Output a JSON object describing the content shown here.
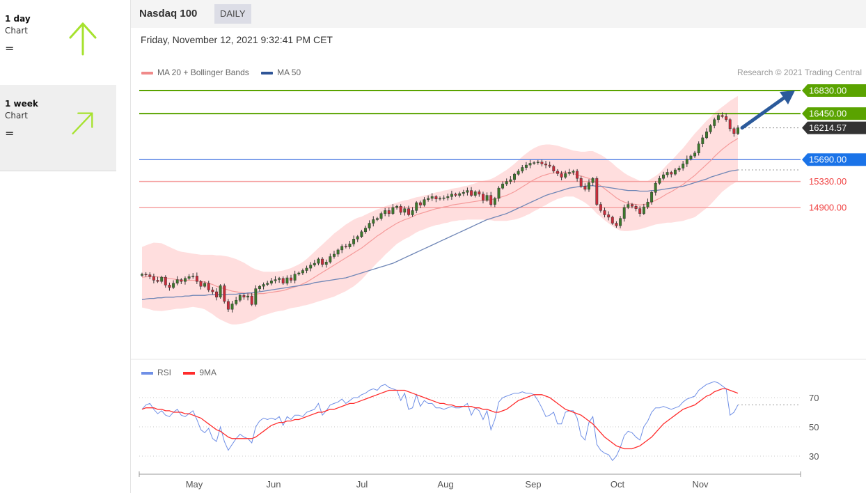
{
  "sidebar": {
    "items": [
      {
        "title": "1 day",
        "subtitle": "Chart",
        "indicator": "=",
        "arrow_icon": "arrow-up-icon",
        "color": "#9acd32"
      },
      {
        "title": "1 week",
        "subtitle": "Chart",
        "indicator": "=",
        "arrow_icon": "arrow-up-right-icon",
        "color": "#9acd32"
      }
    ]
  },
  "header": {
    "title": "Nasdaq 100",
    "badge": "DAILY"
  },
  "datetime": "Friday, November 12, 2021 9:32:41 PM CET",
  "legend": {
    "items": [
      {
        "label": "MA 20 + Bollinger Bands",
        "color": "#f08080"
      },
      {
        "label": "MA 50",
        "color": "#2f5597"
      }
    ],
    "credit": "Research © 2021 Trading Central"
  },
  "chart_data": [
    {
      "type": "line",
      "title": "Nasdaq 100",
      "ylim": [
        13200,
        17000
      ],
      "x_labels": [
        "May",
        "Jun",
        "Jul",
        "Aug",
        "Sep",
        "Oct",
        "Nov"
      ],
      "levels": [
        {
          "value": 16830,
          "label": "16830.00",
          "color": "#5aa300"
        },
        {
          "value": 16450,
          "label": "16450.00",
          "color": "#5aa300"
        },
        {
          "value": 16214.57,
          "label": "16214.57",
          "color": "#333333"
        },
        {
          "value": 15690,
          "label": "15690.00",
          "color": "#1a73e8"
        },
        {
          "value": 15330,
          "label": "15330.00",
          "color": "#f06060"
        },
        {
          "value": 14900,
          "label": "14900.00",
          "color": "#f06060"
        }
      ],
      "close": [
        13800,
        13790,
        13760,
        13700,
        13680,
        13750,
        13620,
        13580,
        13650,
        13710,
        13680,
        13730,
        13760,
        13770,
        13680,
        13600,
        13650,
        13540,
        13510,
        13420,
        13610,
        13350,
        13220,
        13310,
        13370,
        13450,
        13420,
        13440,
        13300,
        13560,
        13600,
        13630,
        13650,
        13690,
        13710,
        13730,
        13650,
        13740,
        13700,
        13800,
        13820,
        13860,
        13900,
        13950,
        13980,
        14050,
        13960,
        14000,
        14090,
        14130,
        14200,
        14260,
        14250,
        14300,
        14380,
        14420,
        14500,
        14560,
        14640,
        14700,
        14720,
        14800,
        14850,
        14800,
        14900,
        14920,
        14820,
        14880,
        14780,
        14850,
        14980,
        14940,
        15030,
        15050,
        15080,
        15040,
        15050,
        15060,
        15080,
        15120,
        15100,
        15130,
        15150,
        15180,
        15100,
        15160,
        15120,
        15020,
        15100,
        14950,
        15050,
        15220,
        15290,
        15330,
        15360,
        15450,
        15500,
        15560,
        15600,
        15630,
        15640,
        15650,
        15620,
        15600,
        15580,
        15500,
        15460,
        15400,
        15460,
        15480,
        15500,
        15380,
        15250,
        15200,
        15310,
        15380,
        14950,
        14850,
        14780,
        14740,
        14640,
        14600,
        14720,
        14900,
        14950,
        14920,
        14880,
        14800,
        14910,
        14990,
        15150,
        15300,
        15380,
        15440,
        15480,
        15450,
        15520,
        15550,
        15620,
        15700,
        15750,
        15800,
        15950,
        16050,
        16150,
        16250,
        16350,
        16420,
        16400,
        16350,
        16200,
        16120,
        16214.57
      ],
      "ma20": [
        13750,
        13755,
        13760,
        13760,
        13755,
        13750,
        13740,
        13730,
        13720,
        13710,
        13700,
        13700,
        13700,
        13700,
        13690,
        13680,
        13670,
        13650,
        13630,
        13600,
        13580,
        13560,
        13540,
        13520,
        13510,
        13500,
        13490,
        13480,
        13470,
        13470,
        13480,
        13480,
        13490,
        13500,
        13510,
        13520,
        13530,
        13550,
        13570,
        13590,
        13610,
        13640,
        13670,
        13710,
        13750,
        13790,
        13830,
        13870,
        13910,
        13950,
        13990,
        14030,
        14070,
        14110,
        14150,
        14190,
        14230,
        14280,
        14330,
        14380,
        14430,
        14470,
        14520,
        14560,
        14600,
        14640,
        14670,
        14700,
        14720,
        14750,
        14780,
        14800,
        14820,
        14840,
        14860,
        14880,
        14890,
        14910,
        14920,
        14940,
        14950,
        14960,
        14970,
        14980,
        14990,
        15000,
        15010,
        15020,
        15020,
        15030,
        15040,
        15060,
        15080,
        15100,
        15130,
        15160,
        15200,
        15240,
        15280,
        15320,
        15360,
        15390,
        15420,
        15440,
        15460,
        15470,
        15480,
        15480,
        15480,
        15470,
        15460,
        15440,
        15420,
        15400,
        15380,
        15350,
        15300,
        15260,
        15210,
        15160,
        15110,
        15060,
        15020,
        14990,
        14970,
        14960,
        14950,
        14940,
        14950,
        14960,
        14990,
        15020,
        15050,
        15090,
        15130,
        15160,
        15200,
        15240,
        15280,
        15330,
        15380,
        15430,
        15490,
        15550,
        15610,
        15670,
        15740,
        15800,
        15860,
        15910,
        15960,
        16000,
        16040
      ],
      "ma50": [
        13380,
        13390,
        13400,
        13400,
        13410,
        13410,
        13420,
        13420,
        13420,
        13430,
        13430,
        13440,
        13440,
        13450,
        13450,
        13450,
        13450,
        13460,
        13460,
        13460,
        13460,
        13460,
        13470,
        13470,
        13470,
        13480,
        13480,
        13490,
        13490,
        13500,
        13510,
        13520,
        13530,
        13540,
        13550,
        13560,
        13570,
        13580,
        13590,
        13600,
        13610,
        13620,
        13630,
        13640,
        13660,
        13670,
        13680,
        13690,
        13700,
        13710,
        13720,
        13730,
        13740,
        13760,
        13780,
        13800,
        13820,
        13840,
        13860,
        13880,
        13900,
        13920,
        13940,
        13960,
        13980,
        14010,
        14040,
        14070,
        14100,
        14130,
        14160,
        14190,
        14220,
        14250,
        14280,
        14310,
        14340,
        14370,
        14400,
        14430,
        14460,
        14490,
        14520,
        14550,
        14580,
        14610,
        14640,
        14670,
        14700,
        14720,
        14740,
        14760,
        14780,
        14800,
        14830,
        14860,
        14890,
        14920,
        14950,
        14980,
        15010,
        15040,
        15070,
        15100,
        15120,
        15140,
        15160,
        15180,
        15200,
        15220,
        15230,
        15240,
        15250,
        15250,
        15260,
        15260,
        15250,
        15250,
        15240,
        15230,
        15220,
        15210,
        15200,
        15190,
        15180,
        15180,
        15180,
        15170,
        15170,
        15170,
        15180,
        15180,
        15190,
        15200,
        15210,
        15220,
        15230,
        15240,
        15250,
        15270,
        15290,
        15310,
        15330,
        15350,
        15370,
        15400,
        15420,
        15440,
        15460,
        15480,
        15500,
        15510,
        15520
      ],
      "bollinger_width": [
        500,
        520,
        540,
        560,
        560,
        560,
        540,
        520,
        500,
        480,
        470,
        460,
        450,
        440,
        440,
        440,
        450,
        470,
        490,
        510,
        530,
        540,
        550,
        550,
        540,
        520,
        500,
        470,
        440,
        410,
        380,
        360,
        350,
        340,
        330,
        330,
        330,
        330,
        330,
        340,
        350,
        360,
        380,
        400,
        420,
        440,
        460,
        480,
        500,
        520,
        530,
        540,
        550,
        550,
        550,
        540,
        520,
        500,
        480,
        460,
        440,
        420,
        400,
        380,
        360,
        340,
        330,
        320,
        310,
        300,
        290,
        280,
        280,
        270,
        270,
        270,
        270,
        270,
        270,
        270,
        270,
        270,
        280,
        280,
        290,
        300,
        310,
        320,
        330,
        340,
        360,
        380,
        400,
        420,
        440,
        460,
        480,
        500,
        510,
        520,
        520,
        520,
        510,
        500,
        480,
        460,
        440,
        420,
        400,
        390,
        380,
        390,
        400,
        420,
        450,
        480,
        500,
        510,
        520,
        520,
        520,
        510,
        500,
        480,
        460,
        440,
        420,
        400,
        390,
        380,
        390,
        400,
        420,
        450,
        480,
        510,
        540,
        570,
        600,
        630,
        660,
        690,
        700,
        710,
        720,
        720,
        720,
        710,
        700,
        700,
        700,
        700,
        700
      ]
    },
    {
      "type": "line",
      "title": "RSI",
      "ylim": [
        20,
        85
      ],
      "y_ticks": [
        "70",
        "50",
        "30"
      ],
      "series": [
        {
          "name": "RSI",
          "color": "#6f8fe6",
          "values": [
            62,
            65,
            66,
            62,
            59,
            61,
            58,
            57,
            60,
            62,
            58,
            57,
            59,
            61,
            55,
            48,
            46,
            49,
            42,
            40,
            50,
            40,
            34,
            38,
            42,
            45,
            43,
            42,
            39,
            50,
            54,
            56,
            55,
            56,
            55,
            57,
            51,
            57,
            55,
            58,
            58,
            57,
            60,
            61,
            62,
            66,
            58,
            61,
            65,
            66,
            67,
            69,
            66,
            68,
            70,
            70,
            72,
            73,
            75,
            76,
            75,
            78,
            79,
            77,
            76,
            75,
            68,
            73,
            62,
            63,
            72,
            64,
            68,
            66,
            66,
            63,
            63,
            62,
            63,
            64,
            63,
            63,
            64,
            66,
            58,
            63,
            61,
            55,
            61,
            48,
            55,
            67,
            70,
            71,
            72,
            73,
            73,
            74,
            73,
            73,
            72,
            68,
            63,
            57,
            58,
            60,
            52,
            52,
            60,
            61,
            61,
            56,
            44,
            41,
            53,
            57,
            38,
            34,
            32,
            31,
            27,
            30,
            36,
            44,
            47,
            46,
            43,
            41,
            50,
            54,
            60,
            63,
            63,
            64,
            63,
            62,
            63,
            64,
            67,
            69,
            70,
            71,
            75,
            77,
            79,
            80,
            81,
            80,
            78,
            76,
            58,
            60,
            65
          ]
        },
        {
          "name": "9MA",
          "color": "#ff2b2b",
          "values": [
            62,
            63,
            63,
            63,
            62,
            62,
            61,
            61,
            60,
            60,
            60,
            59,
            59,
            58,
            57,
            56,
            54,
            52,
            50,
            48,
            47,
            45,
            43,
            42,
            42,
            42,
            42,
            42,
            42,
            43,
            45,
            47,
            49,
            51,
            52,
            53,
            53,
            54,
            54,
            55,
            55,
            56,
            57,
            58,
            59,
            60,
            60,
            61,
            62,
            62,
            63,
            64,
            65,
            66,
            66,
            67,
            68,
            69,
            70,
            71,
            72,
            73,
            74,
            75,
            75,
            75,
            75,
            75,
            74,
            73,
            72,
            71,
            70,
            69,
            68,
            67,
            66,
            66,
            65,
            65,
            64,
            64,
            64,
            64,
            64,
            63,
            63,
            62,
            62,
            61,
            60,
            60,
            61,
            62,
            64,
            66,
            68,
            69,
            70,
            71,
            72,
            72,
            72,
            71,
            70,
            68,
            66,
            64,
            62,
            61,
            60,
            59,
            58,
            56,
            54,
            52,
            49,
            46,
            43,
            41,
            39,
            37,
            36,
            35,
            35,
            35,
            36,
            37,
            39,
            41,
            43,
            46,
            49,
            52,
            54,
            56,
            58,
            60,
            62,
            63,
            64,
            65,
            67,
            69,
            71,
            72,
            74,
            75,
            76,
            76,
            75,
            74,
            73
          ]
        }
      ]
    }
  ]
}
